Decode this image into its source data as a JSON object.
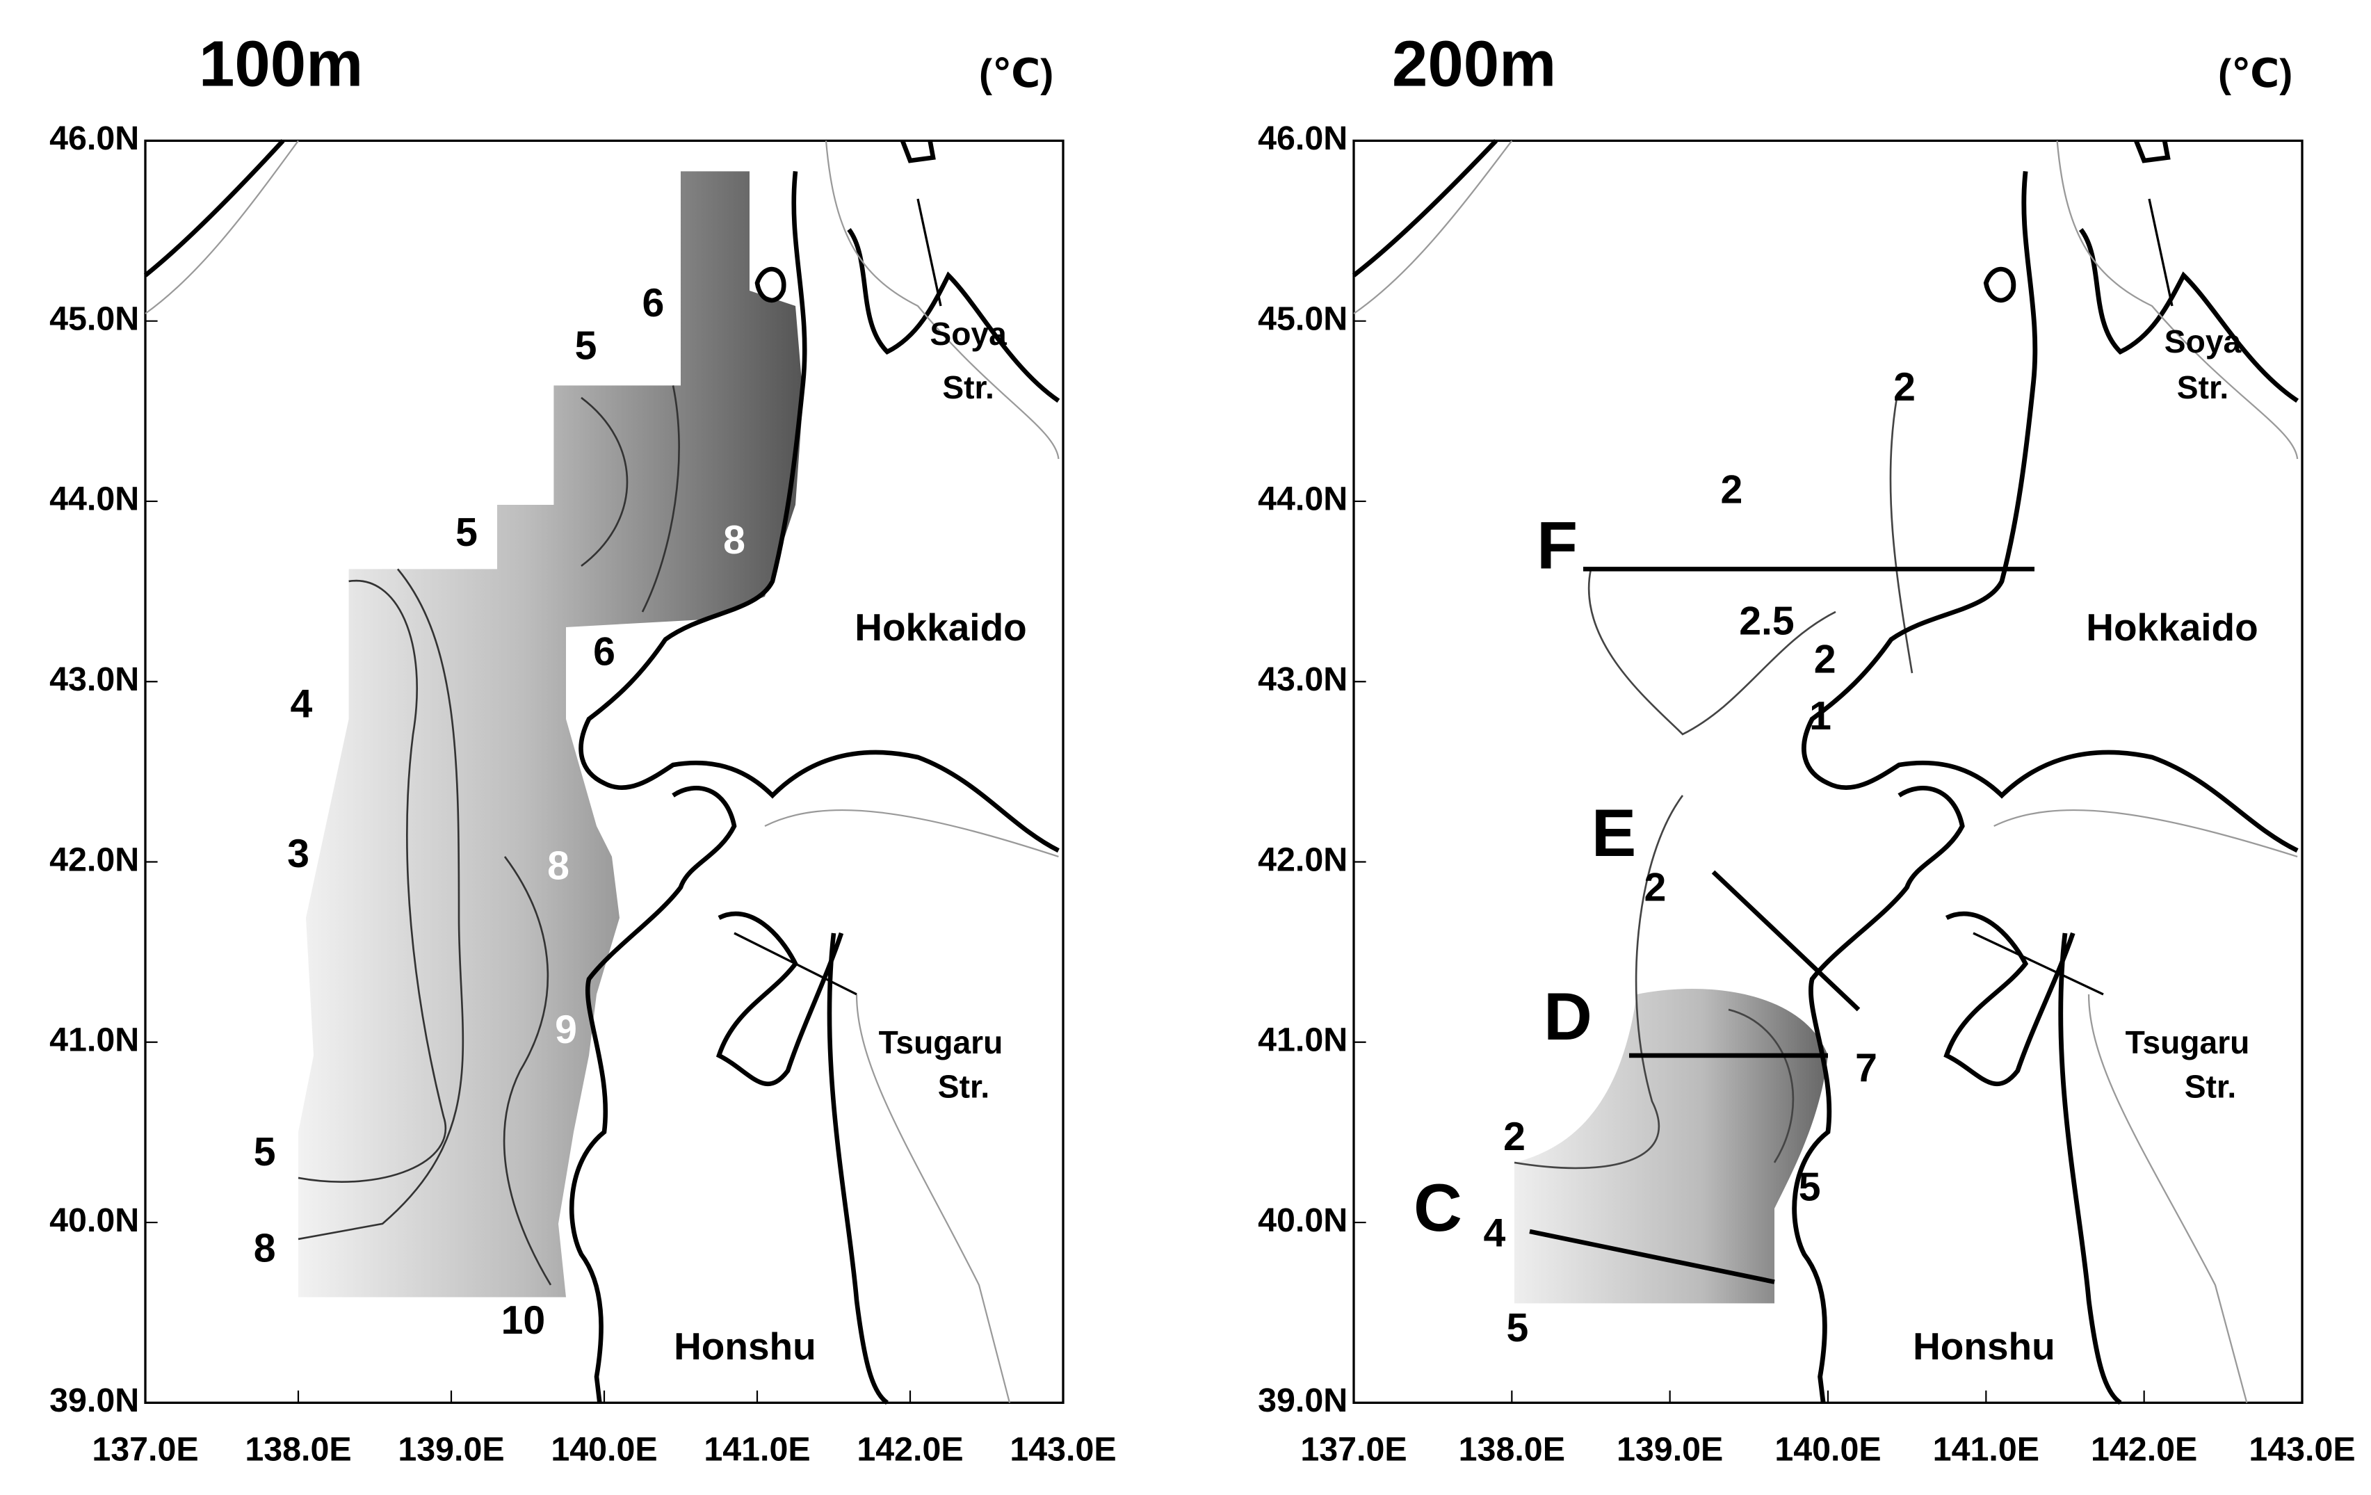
{
  "panels": [
    {
      "title": "100m",
      "unit": "(℃)",
      "xlim": [
        137,
        143
      ],
      "ylim": [
        39,
        46
      ],
      "xticks": [
        {
          "value": 137,
          "label": "137.0E"
        },
        {
          "value": 138,
          "label": "138.0E"
        },
        {
          "value": 139,
          "label": "139.0E"
        },
        {
          "value": 140,
          "label": "140.0E"
        },
        {
          "value": 141,
          "label": "141.0E"
        },
        {
          "value": 142,
          "label": "142.0E"
        },
        {
          "value": 143,
          "label": "143.0E"
        }
      ],
      "yticks": [
        {
          "value": 39,
          "label": "39.0N"
        },
        {
          "value": 40,
          "label": "40.0N"
        },
        {
          "value": 41,
          "label": "41.0N"
        },
        {
          "value": 42,
          "label": "42.0N"
        },
        {
          "value": 43,
          "label": "43.0N"
        },
        {
          "value": 44,
          "label": "44.0N"
        },
        {
          "value": 45,
          "label": "45.0N"
        },
        {
          "value": 46,
          "label": "46.0N"
        }
      ],
      "places": [
        "Soya",
        "Str.",
        "Hokkaido",
        "Tsugaru",
        "Str.",
        "Honshu"
      ],
      "contour_labels": [
        6,
        5,
        5,
        6,
        4,
        3,
        5,
        8,
        8,
        8,
        9,
        10
      ]
    },
    {
      "title": "200m",
      "unit": "(℃)",
      "xlim": [
        137,
        143
      ],
      "ylim": [
        39,
        46
      ],
      "xticks": [
        {
          "value": 137,
          "label": "137.0E"
        },
        {
          "value": 138,
          "label": "138.0E"
        },
        {
          "value": 139,
          "label": "139.0E"
        },
        {
          "value": 140,
          "label": "140.0E"
        },
        {
          "value": 141,
          "label": "141.0E"
        },
        {
          "value": 142,
          "label": "142.0E"
        },
        {
          "value": 143,
          "label": "143.0E"
        }
      ],
      "yticks": [
        {
          "value": 39,
          "label": "39.0N"
        },
        {
          "value": 40,
          "label": "40.0N"
        },
        {
          "value": 41,
          "label": "41.0N"
        },
        {
          "value": 42,
          "label": "42.0N"
        },
        {
          "value": 43,
          "label": "43.0N"
        },
        {
          "value": 44,
          "label": "44.0N"
        },
        {
          "value": 45,
          "label": "45.0N"
        },
        {
          "value": 46,
          "label": "46.0N"
        }
      ],
      "places": [
        "Soya",
        "Str.",
        "Hokkaido",
        "Tsugaru",
        "Str.",
        "Honshu"
      ],
      "contour_labels": [
        2,
        2,
        2.5,
        2,
        1,
        2,
        7,
        2,
        5,
        4,
        5
      ],
      "sections": [
        "F",
        "E",
        "D",
        "C"
      ]
    }
  ]
}
